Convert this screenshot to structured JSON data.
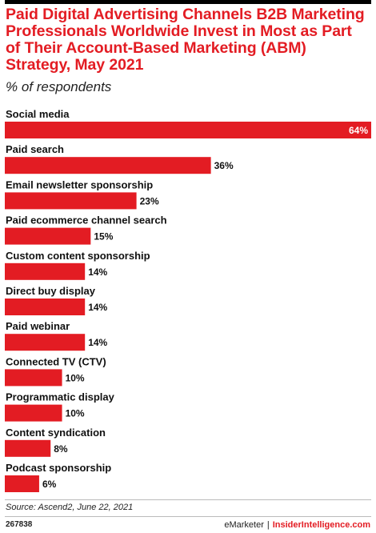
{
  "header": {
    "title": "Paid Digital Advertising Channels B2B Marketing Professionals Worldwide Invest in Most as Part of Their Account-Based Marketing (ABM) Strategy, May 2021",
    "subtitle": "% of respondents"
  },
  "footer": {
    "source": "Source: Ascend2, June 22, 2021",
    "chart_id": "267838",
    "brand_left": "eMarketer",
    "brand_sep": "|",
    "brand_right": "InsiderIntelligence.com"
  },
  "colors": {
    "bar": "#e31c23",
    "accent": "#e31c23"
  },
  "chart_data": {
    "type": "bar",
    "orientation": "horizontal",
    "categories": [
      "Social media",
      "Paid search",
      "Email newsletter sponsorship",
      "Paid ecommerce channel search",
      "Custom content sponsorship",
      "Direct buy display",
      "Paid webinar",
      "Connected TV (CTV)",
      "Programmatic display",
      "Content syndication",
      "Podcast sponsorship"
    ],
    "values": [
      64,
      36,
      23,
      15,
      14,
      14,
      14,
      10,
      10,
      8,
      6
    ],
    "value_labels": [
      "64%",
      "36%",
      "23%",
      "15%",
      "14%",
      "14%",
      "14%",
      "10%",
      "10%",
      "8%",
      "6%"
    ],
    "xlim": [
      0,
      64
    ],
    "grid": false,
    "legend": "none"
  }
}
